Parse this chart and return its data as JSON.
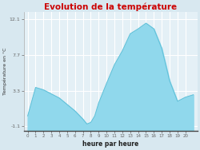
{
  "title": "Evolution de la température",
  "xlabel": "heure par heure",
  "ylabel": "Température en °C",
  "background_color": "#d8e8f0",
  "plot_bg_color": "#e4f0f6",
  "line_color": "#60c0d8",
  "fill_color": "#90d8ec",
  "title_color": "#cc0000",
  "axis_color": "#666666",
  "grid_color": "#ffffff",
  "yticks": [
    -1.1,
    3.3,
    7.7,
    12.1
  ],
  "ylim": [
    -1.6,
    13.0
  ],
  "xlim": [
    -0.5,
    21.5
  ],
  "xtick_labels": [
    "0",
    "1",
    "2",
    "3",
    "4",
    "5",
    "6",
    "7",
    "8",
    "9",
    "10",
    "11",
    "12",
    "13",
    "14",
    "15",
    "16",
    "17",
    "18",
    "19",
    "20"
  ],
  "hours": [
    0,
    1,
    2,
    3,
    4,
    5,
    6,
    7,
    7.5,
    8,
    8.5,
    9,
    10,
    11,
    12,
    13,
    14,
    15,
    16,
    17,
    18,
    19,
    20,
    21
  ],
  "temps": [
    0.2,
    3.7,
    3.4,
    2.9,
    2.4,
    1.6,
    0.8,
    -0.2,
    -0.8,
    -0.6,
    0.2,
    1.8,
    4.2,
    6.5,
    8.2,
    10.3,
    10.9,
    11.6,
    10.9,
    8.5,
    4.5,
    2.0,
    2.5,
    2.8
  ]
}
